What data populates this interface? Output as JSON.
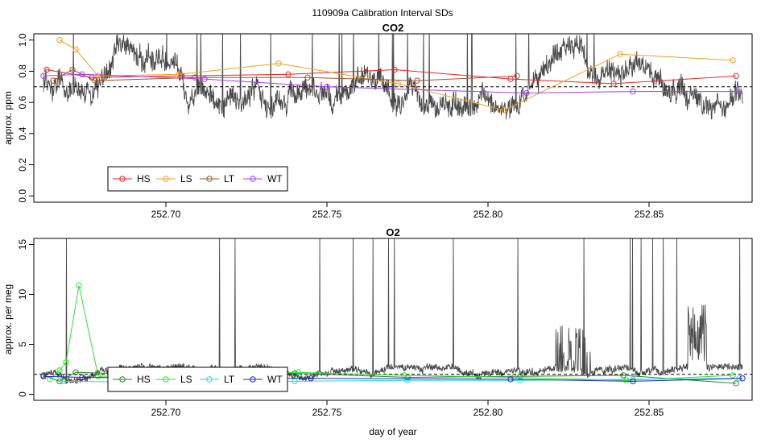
{
  "main_title": "110909a   Calibration Interval SDs",
  "chart_data": [
    {
      "type": "line",
      "title": "CO2",
      "xlabel": "",
      "ylabel": "approx. ppm",
      "xlim": [
        252.659,
        252.882
      ],
      "ylim": [
        -0.04,
        1.04
      ],
      "x_ticks": [
        252.7,
        252.75,
        252.8,
        252.85
      ],
      "x_tick_labels": [
        "252.70",
        "252.75",
        "252.80",
        "252.85"
      ],
      "y_ticks": [
        0.0,
        0.2,
        0.4,
        0.6,
        0.8,
        1.0
      ],
      "y_tick_labels": [
        "0.0",
        "0.2",
        "0.4",
        "0.6",
        "0.8",
        "1.0"
      ],
      "reference_line": 0.7,
      "legend_position": "bottom-left",
      "series": [
        {
          "name": "HS",
          "color": "#ee2222",
          "x": [
            252.663,
            252.677,
            252.705,
            252.738,
            252.771,
            252.807,
            252.839,
            252.877
          ],
          "y": [
            0.81,
            0.76,
            0.77,
            0.78,
            0.81,
            0.75,
            0.72,
            0.77
          ]
        },
        {
          "name": "LS",
          "color": "#f0a020",
          "x": [
            252.667,
            252.672,
            252.679,
            252.704,
            252.735,
            252.772,
            252.805,
            252.841,
            252.876
          ],
          "y": [
            1.0,
            0.94,
            0.77,
            0.78,
            0.85,
            0.72,
            0.55,
            0.91,
            0.87
          ]
        },
        {
          "name": "LT",
          "color": "#a0522d",
          "x": [
            252.665,
            252.671,
            252.678,
            252.709,
            252.744,
            252.778,
            252.809
          ],
          "y": [
            0.74,
            0.81,
            0.74,
            0.76,
            0.76,
            0.74,
            0.77
          ]
        },
        {
          "name": "WT",
          "color": "#a040f0",
          "x": [
            252.662,
            252.674,
            252.712,
            252.75,
            252.812,
            252.845,
            252.878
          ],
          "y": [
            0.77,
            0.78,
            0.75,
            0.7,
            0.66,
            0.67,
            0.67
          ]
        }
      ]
    },
    {
      "type": "line",
      "title": "O2",
      "xlabel": "day of year",
      "ylabel": "approx. per meg",
      "xlim": [
        252.659,
        252.882
      ],
      "ylim": [
        -0.6,
        15.6
      ],
      "x_ticks": [
        252.7,
        252.75,
        252.8,
        252.85
      ],
      "x_tick_labels": [
        "252.70",
        "252.75",
        "252.80",
        "252.85"
      ],
      "y_ticks": [
        0,
        5,
        10,
        15
      ],
      "y_tick_labels": [
        "0",
        "5",
        "10",
        "15"
      ],
      "reference_line": 2.0,
      "legend_position": "bottom-left",
      "series": [
        {
          "name": "HS",
          "color": "#228b22",
          "x": [
            252.662,
            252.667,
            252.672,
            252.706,
            252.74,
            252.775,
            252.81,
            252.842,
            252.877
          ],
          "y": [
            1.9,
            1.3,
            2.2,
            1.9,
            2.1,
            1.7,
            1.8,
            1.9,
            1.1
          ]
        },
        {
          "name": "LS",
          "color": "#33dd33",
          "x": [
            252.664,
            252.667,
            252.669,
            252.673,
            252.679,
            252.707,
            252.741,
            252.774,
            252.808,
            252.843,
            252.876
          ],
          "y": [
            1.5,
            2.4,
            3.2,
            10.9,
            1.8,
            1.9,
            2.2,
            1.9,
            1.7,
            1.4,
            1.9
          ]
        },
        {
          "name": "LT",
          "color": "#22dddd",
          "x": [
            252.668,
            252.7,
            252.74,
            252.775,
            252.81,
            252.845,
            252.878
          ],
          "y": [
            1.3,
            1.2,
            1.3,
            1.4,
            1.4,
            1.5,
            1.6
          ]
        },
        {
          "name": "WT",
          "color": "#2222cc",
          "x": [
            252.662,
            252.674,
            252.745,
            252.807,
            252.845,
            252.879
          ],
          "y": [
            1.8,
            1.7,
            1.6,
            1.5,
            1.3,
            1.6
          ]
        }
      ]
    }
  ]
}
